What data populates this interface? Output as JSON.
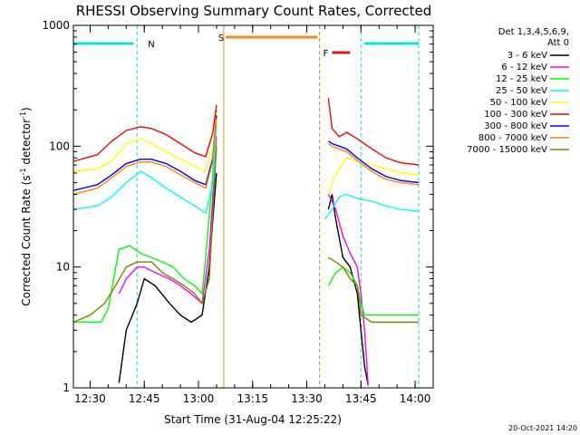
{
  "chart_data": {
    "type": "line",
    "title": "RHESSI Observing Summary Count Rates, Corrected",
    "xlabel": "Start Time (31-Aug-04 12:25:22)",
    "ylabel": "Corrected Count Rate (s^-1 detector^-1)",
    "ylabel_main": "Corrected Count Rate (s",
    "ylabel_sup1": "-1",
    "ylabel_mid": " detector",
    "ylabel_sup2": "-1",
    "ylabel_end": ")",
    "yscale": "log",
    "ylim": [
      1,
      1000
    ],
    "xlim": [
      "12:25:22",
      "14:05:00"
    ],
    "x_ticks": [
      "12:30",
      "12:45",
      "13:00",
      "13:15",
      "13:30",
      "13:45",
      "14:00"
    ],
    "y_ticks": [
      "1",
      "10",
      "100",
      "1000"
    ],
    "legend_header": [
      "Det 1,3,4,5,6,9,",
      "Att 0"
    ],
    "legend_position": "right",
    "footer": "20-Oct-2021 14:20",
    "markers": [
      {
        "label": "N",
        "color": "#00e5e5",
        "lines": [
          "12:25:22",
          "12:43:00",
          "13:45:00",
          "14:01:00"
        ],
        "bars": [
          [
            "12:25:22",
            "12:42:00"
          ],
          [
            "13:46:00",
            "14:01:00"
          ]
        ]
      },
      {
        "label": "S",
        "color": "#f08a24",
        "lines": [
          "13:07:00",
          "13:33:30"
        ],
        "bars": [
          [
            "13:07:30",
            "13:33:00"
          ]
        ]
      },
      {
        "label": "F",
        "color": "#e0141e",
        "lines": [],
        "bars": [
          [
            "13:37:00",
            "13:42:00"
          ]
        ]
      }
    ],
    "series": [
      {
        "name": "3 - 6 keV",
        "color": "#000000",
        "segments": [
          [
            [
              "12:38",
              1.1
            ],
            [
              "12:40",
              3
            ],
            [
              "12:43",
              5
            ],
            [
              "12:45",
              8
            ],
            [
              "12:48",
              7
            ],
            [
              "12:52",
              5
            ],
            [
              "12:55",
              4
            ],
            [
              "12:58",
              3.5
            ],
            [
              "13:01",
              4
            ],
            [
              "13:03",
              10
            ],
            [
              "13:04",
              25
            ],
            [
              "13:05",
              60
            ]
          ],
          [
            [
              "13:36",
              30
            ],
            [
              "13:37",
              40
            ],
            [
              "13:38",
              25
            ],
            [
              "13:40",
              12
            ],
            [
              "13:42",
              10
            ],
            [
              "13:44",
              6
            ],
            [
              "13:45",
              3
            ],
            [
              "13:46",
              1.5
            ],
            [
              "13:47",
              1.05
            ]
          ]
        ]
      },
      {
        "name": "6 - 12 keV",
        "color": "#ff00ff",
        "segments": [
          [
            [
              "12:38",
              6
            ],
            [
              "12:40",
              8
            ],
            [
              "12:43",
              10
            ],
            [
              "12:45",
              10
            ],
            [
              "12:48",
              9
            ],
            [
              "12:52",
              8
            ],
            [
              "12:55",
              7
            ],
            [
              "12:58",
              6
            ],
            [
              "13:01",
              5
            ],
            [
              "13:03",
              14
            ],
            [
              "13:04",
              40
            ],
            [
              "13:05",
              120
            ]
          ],
          [
            [
              "13:36",
              40
            ],
            [
              "13:37",
              35
            ],
            [
              "13:38",
              30
            ],
            [
              "13:40",
              18
            ],
            [
              "13:42",
              13
            ],
            [
              "13:44",
              10
            ],
            [
              "13:45",
              6
            ],
            [
              "13:46",
              3
            ],
            [
              "13:47",
              1.05
            ]
          ]
        ]
      },
      {
        "name": "12 - 25 keV",
        "color": "#00ff00",
        "segments": [
          [
            [
              "12:25:22",
              3.5
            ],
            [
              "12:33",
              3.5
            ],
            [
              "12:35",
              4.5
            ],
            [
              "12:38",
              14
            ],
            [
              "12:41",
              15
            ],
            [
              "12:44",
              13
            ],
            [
              "12:47",
              12
            ],
            [
              "12:50",
              11
            ],
            [
              "12:53",
              10
            ],
            [
              "12:56",
              8
            ],
            [
              "12:59",
              7
            ],
            [
              "13:01",
              6
            ],
            [
              "13:02",
              12
            ],
            [
              "13:04",
              60
            ],
            [
              "13:05",
              200
            ]
          ],
          [
            [
              "13:36",
              7
            ],
            [
              "13:38",
              9
            ],
            [
              "13:40",
              10
            ],
            [
              "13:42",
              9
            ],
            [
              "13:44",
              7
            ],
            [
              "13:45",
              5
            ],
            [
              "13:46",
              4
            ],
            [
              "13:50",
              4
            ],
            [
              "13:55",
              4
            ],
            [
              "14:01",
              4
            ]
          ]
        ]
      },
      {
        "name": "25 - 50 keV",
        "color": "#00ffff",
        "segments": [
          [
            [
              "12:25:22",
              30
            ],
            [
              "12:32",
              32
            ],
            [
              "12:36",
              38
            ],
            [
              "12:40",
              50
            ],
            [
              "12:44",
              62
            ],
            [
              "12:47",
              55
            ],
            [
              "12:51",
              45
            ],
            [
              "12:55",
              38
            ],
            [
              "12:59",
              32
            ],
            [
              "13:02",
              28
            ],
            [
              "13:04",
              50
            ],
            [
              "13:05",
              150
            ]
          ],
          [
            [
              "13:35",
              25
            ],
            [
              "13:37",
              30
            ],
            [
              "13:39",
              38
            ],
            [
              "13:41",
              40
            ],
            [
              "13:44",
              37
            ],
            [
              "13:48",
              35
            ],
            [
              "13:52",
              32
            ],
            [
              "13:56",
              30
            ],
            [
              "14:01",
              29
            ]
          ]
        ]
      },
      {
        "name": "50 - 100 keV",
        "color": "#ffff00",
        "segments": [
          [
            [
              "12:25:22",
              62
            ],
            [
              "12:32",
              65
            ],
            [
              "12:36",
              75
            ],
            [
              "12:40",
              105
            ],
            [
              "12:44",
              115
            ],
            [
              "12:47",
              105
            ],
            [
              "12:51",
              90
            ],
            [
              "12:55",
              78
            ],
            [
              "12:59",
              68
            ],
            [
              "13:02",
              62
            ],
            [
              "13:04",
              95
            ],
            [
              "13:05",
              190
            ]
          ],
          [
            [
              "13:36",
              40
            ],
            [
              "13:37",
              50
            ],
            [
              "13:39",
              65
            ],
            [
              "13:41",
              80
            ],
            [
              "13:44",
              75
            ],
            [
              "13:48",
              70
            ],
            [
              "13:52",
              65
            ],
            [
              "13:56",
              60
            ],
            [
              "14:01",
              58
            ]
          ]
        ]
      },
      {
        "name": "100 - 300 keV",
        "color": "#ff0000",
        "segments": [
          [
            [
              "12:25:22",
              75
            ],
            [
              "12:32",
              85
            ],
            [
              "12:36",
              110
            ],
            [
              "12:40",
              135
            ],
            [
              "12:44",
              145
            ],
            [
              "12:47",
              140
            ],
            [
              "12:51",
              125
            ],
            [
              "12:55",
              105
            ],
            [
              "12:59",
              88
            ],
            [
              "13:02",
              82
            ],
            [
              "13:04",
              130
            ],
            [
              "13:05",
              220
            ]
          ],
          [
            [
              "13:36",
              250
            ],
            [
              "13:37",
              140
            ],
            [
              "13:39",
              120
            ],
            [
              "13:41",
              130
            ],
            [
              "13:44",
              115
            ],
            [
              "13:48",
              95
            ],
            [
              "13:52",
              80
            ],
            [
              "13:56",
              73
            ],
            [
              "14:01",
              70
            ]
          ]
        ]
      },
      {
        "name": "300 - 800 keV",
        "color": "#0000ff",
        "segments": [
          [
            [
              "12:25:22",
              43
            ],
            [
              "12:32",
              48
            ],
            [
              "12:36",
              58
            ],
            [
              "12:40",
              72
            ],
            [
              "12:44",
              78
            ],
            [
              "12:47",
              78
            ],
            [
              "12:51",
              72
            ],
            [
              "12:55",
              62
            ],
            [
              "12:59",
              52
            ],
            [
              "13:02",
              48
            ],
            [
              "13:04",
              80
            ],
            [
              "13:05",
              180
            ]
          ],
          [
            [
              "13:36",
              110
            ],
            [
              "13:37",
              105
            ],
            [
              "13:39",
              100
            ],
            [
              "13:41",
              95
            ],
            [
              "13:44",
              80
            ],
            [
              "13:48",
              65
            ],
            [
              "13:52",
              56
            ],
            [
              "13:56",
              52
            ],
            [
              "14:01",
              50
            ]
          ]
        ]
      },
      {
        "name": "800 - 7000 keV",
        "color": "#ff8800",
        "segments": [
          [
            [
              "12:25:22",
              40
            ],
            [
              "12:32",
              45
            ],
            [
              "12:36",
              55
            ],
            [
              "12:40",
              68
            ],
            [
              "12:44",
              74
            ],
            [
              "12:47",
              74
            ],
            [
              "12:51",
              68
            ],
            [
              "12:55",
              58
            ],
            [
              "12:59",
              50
            ],
            [
              "13:02",
              45
            ],
            [
              "13:04",
              75
            ],
            [
              "13:05",
              170
            ]
          ],
          [
            [
              "13:36",
              105
            ],
            [
              "13:37",
              100
            ],
            [
              "13:39",
              95
            ],
            [
              "13:41",
              90
            ],
            [
              "13:44",
              76
            ],
            [
              "13:48",
              62
            ],
            [
              "13:52",
              53
            ],
            [
              "13:56",
              50
            ],
            [
              "14:01",
              48
            ]
          ]
        ]
      },
      {
        "name": "7000 - 15000 keV",
        "color": "#808000",
        "segments": [
          [
            [
              "12:25:22",
              3.5
            ],
            [
              "12:30",
              4
            ],
            [
              "12:34",
              5
            ],
            [
              "12:37",
              7
            ],
            [
              "12:40",
              10
            ],
            [
              "12:43",
              11
            ],
            [
              "12:47",
              11
            ],
            [
              "12:50",
              9
            ],
            [
              "12:53",
              8
            ],
            [
              "12:56",
              7
            ],
            [
              "12:59",
              6
            ],
            [
              "13:01",
              5
            ],
            [
              "13:03",
              8
            ],
            [
              "13:04",
              30
            ],
            [
              "13:05",
              100
            ]
          ],
          [
            [
              "13:36",
              12
            ],
            [
              "13:38",
              11
            ],
            [
              "13:40",
              10
            ],
            [
              "13:42",
              8
            ],
            [
              "13:44",
              7
            ],
            [
              "13:45",
              4
            ],
            [
              "13:48",
              3.5
            ],
            [
              "13:55",
              3.5
            ],
            [
              "14:01",
              3.5
            ]
          ]
        ]
      }
    ]
  }
}
